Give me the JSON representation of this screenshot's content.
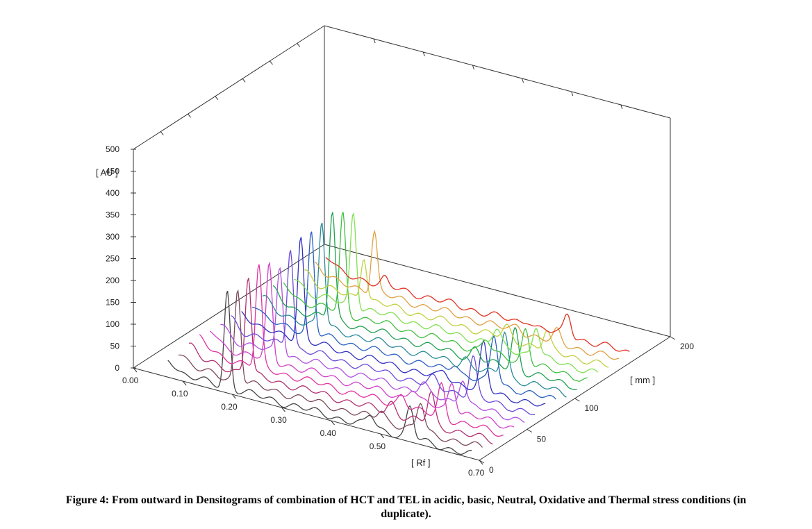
{
  "chart_data": {
    "type": "line",
    "projection": "3d-waterfall",
    "z_unit_label": "[ AU ]",
    "x_unit_label": "[ Rf ]",
    "y_unit_label": "[ mm ]",
    "z_ticks": [
      "0",
      "50",
      "100",
      "150",
      "200",
      "250",
      "300",
      "350",
      "400",
      "450",
      "500"
    ],
    "x_ticks": [
      "0.00",
      "0.10",
      "0.20",
      "0.30",
      "0.40",
      "0.50",
      "0.70"
    ],
    "y_ticks": [
      "0",
      "50",
      "100",
      "200"
    ],
    "zlim": [
      0,
      500
    ],
    "xlim": [
      0.0,
      0.7
    ],
    "ylim": [
      0,
      200
    ],
    "grid": false,
    "series": [
      {
        "color": "#444444",
        "y": 0,
        "peaks": [
          [
            0.19,
            220,
            0.006
          ],
          [
            0.48,
            28,
            0.008
          ],
          [
            0.56,
            70,
            0.007
          ]
        ]
      },
      {
        "color": "#7a4a5a",
        "y": 11,
        "peaks": [
          [
            0.19,
            210,
            0.006
          ],
          [
            0.48,
            22,
            0.008
          ],
          [
            0.56,
            65,
            0.007
          ]
        ]
      },
      {
        "color": "#b03070",
        "y": 22,
        "peaks": [
          [
            0.19,
            225,
            0.006
          ],
          [
            0.48,
            25,
            0.008
          ],
          [
            0.56,
            72,
            0.007
          ]
        ]
      },
      {
        "color": "#e033a0",
        "y": 33,
        "peaks": [
          [
            0.19,
            230,
            0.006
          ],
          [
            0.48,
            30,
            0.008
          ],
          [
            0.56,
            75,
            0.007
          ]
        ]
      },
      {
        "color": "#d040c8",
        "y": 44,
        "peaks": [
          [
            0.19,
            215,
            0.006
          ],
          [
            0.48,
            26,
            0.008
          ],
          [
            0.56,
            68,
            0.007
          ]
        ]
      },
      {
        "color": "#b050e0",
        "y": 55,
        "peaks": [
          [
            0.19,
            200,
            0.006
          ],
          [
            0.48,
            20,
            0.008
          ],
          [
            0.56,
            60,
            0.007
          ]
        ]
      },
      {
        "color": "#6a4ad8",
        "y": 66,
        "peaks": [
          [
            0.19,
            230,
            0.006
          ],
          [
            0.48,
            18,
            0.008
          ],
          [
            0.56,
            90,
            0.007
          ]
        ]
      },
      {
        "color": "#3030c0",
        "y": 77,
        "peaks": [
          [
            0.19,
            235,
            0.006
          ],
          [
            0.48,
            20,
            0.008
          ],
          [
            0.56,
            105,
            0.007
          ]
        ]
      },
      {
        "color": "#2860c0",
        "y": 88,
        "peaks": [
          [
            0.19,
            230,
            0.006
          ],
          [
            0.48,
            22,
            0.008
          ],
          [
            0.56,
            110,
            0.007
          ]
        ]
      },
      {
        "color": "#2a8a9a",
        "y": 99,
        "peaks": [
          [
            0.19,
            240,
            0.006
          ],
          [
            0.48,
            20,
            0.008
          ],
          [
            0.56,
            105,
            0.007
          ]
        ]
      },
      {
        "color": "#20a050",
        "y": 110,
        "peaks": [
          [
            0.19,
            245,
            0.006
          ],
          [
            0.48,
            25,
            0.008
          ],
          [
            0.56,
            95,
            0.007
          ]
        ]
      },
      {
        "color": "#40c040",
        "y": 121,
        "peaks": [
          [
            0.19,
            225,
            0.006
          ],
          [
            0.48,
            30,
            0.008
          ],
          [
            0.56,
            80,
            0.007
          ]
        ]
      },
      {
        "color": "#80e050",
        "y": 132,
        "peaks": [
          [
            0.19,
            215,
            0.006
          ],
          [
            0.48,
            35,
            0.008
          ],
          [
            0.56,
            70,
            0.007
          ]
        ]
      },
      {
        "color": "#c0d040",
        "y": 143,
        "peaks": [
          [
            0.19,
            100,
            0.006
          ],
          [
            0.48,
            25,
            0.008
          ],
          [
            0.56,
            40,
            0.007
          ]
        ]
      },
      {
        "color": "#e0a040",
        "y": 154,
        "peaks": [
          [
            0.19,
            140,
            0.006
          ],
          [
            0.48,
            15,
            0.008
          ],
          [
            0.56,
            25,
            0.007
          ]
        ]
      },
      {
        "color": "#e03020",
        "y": 165,
        "peaks": [
          [
            0.19,
            15,
            0.006
          ],
          [
            0.48,
            12,
            0.008
          ],
          [
            0.56,
            50,
            0.007
          ]
        ]
      }
    ]
  },
  "caption": {
    "line1": "Figure 4: From outward in Densitograms of combination of HCT and TEL in acidic, basic, Neutral, Oxidative and Thermal stress conditions (in",
    "line2": "duplicate)."
  }
}
